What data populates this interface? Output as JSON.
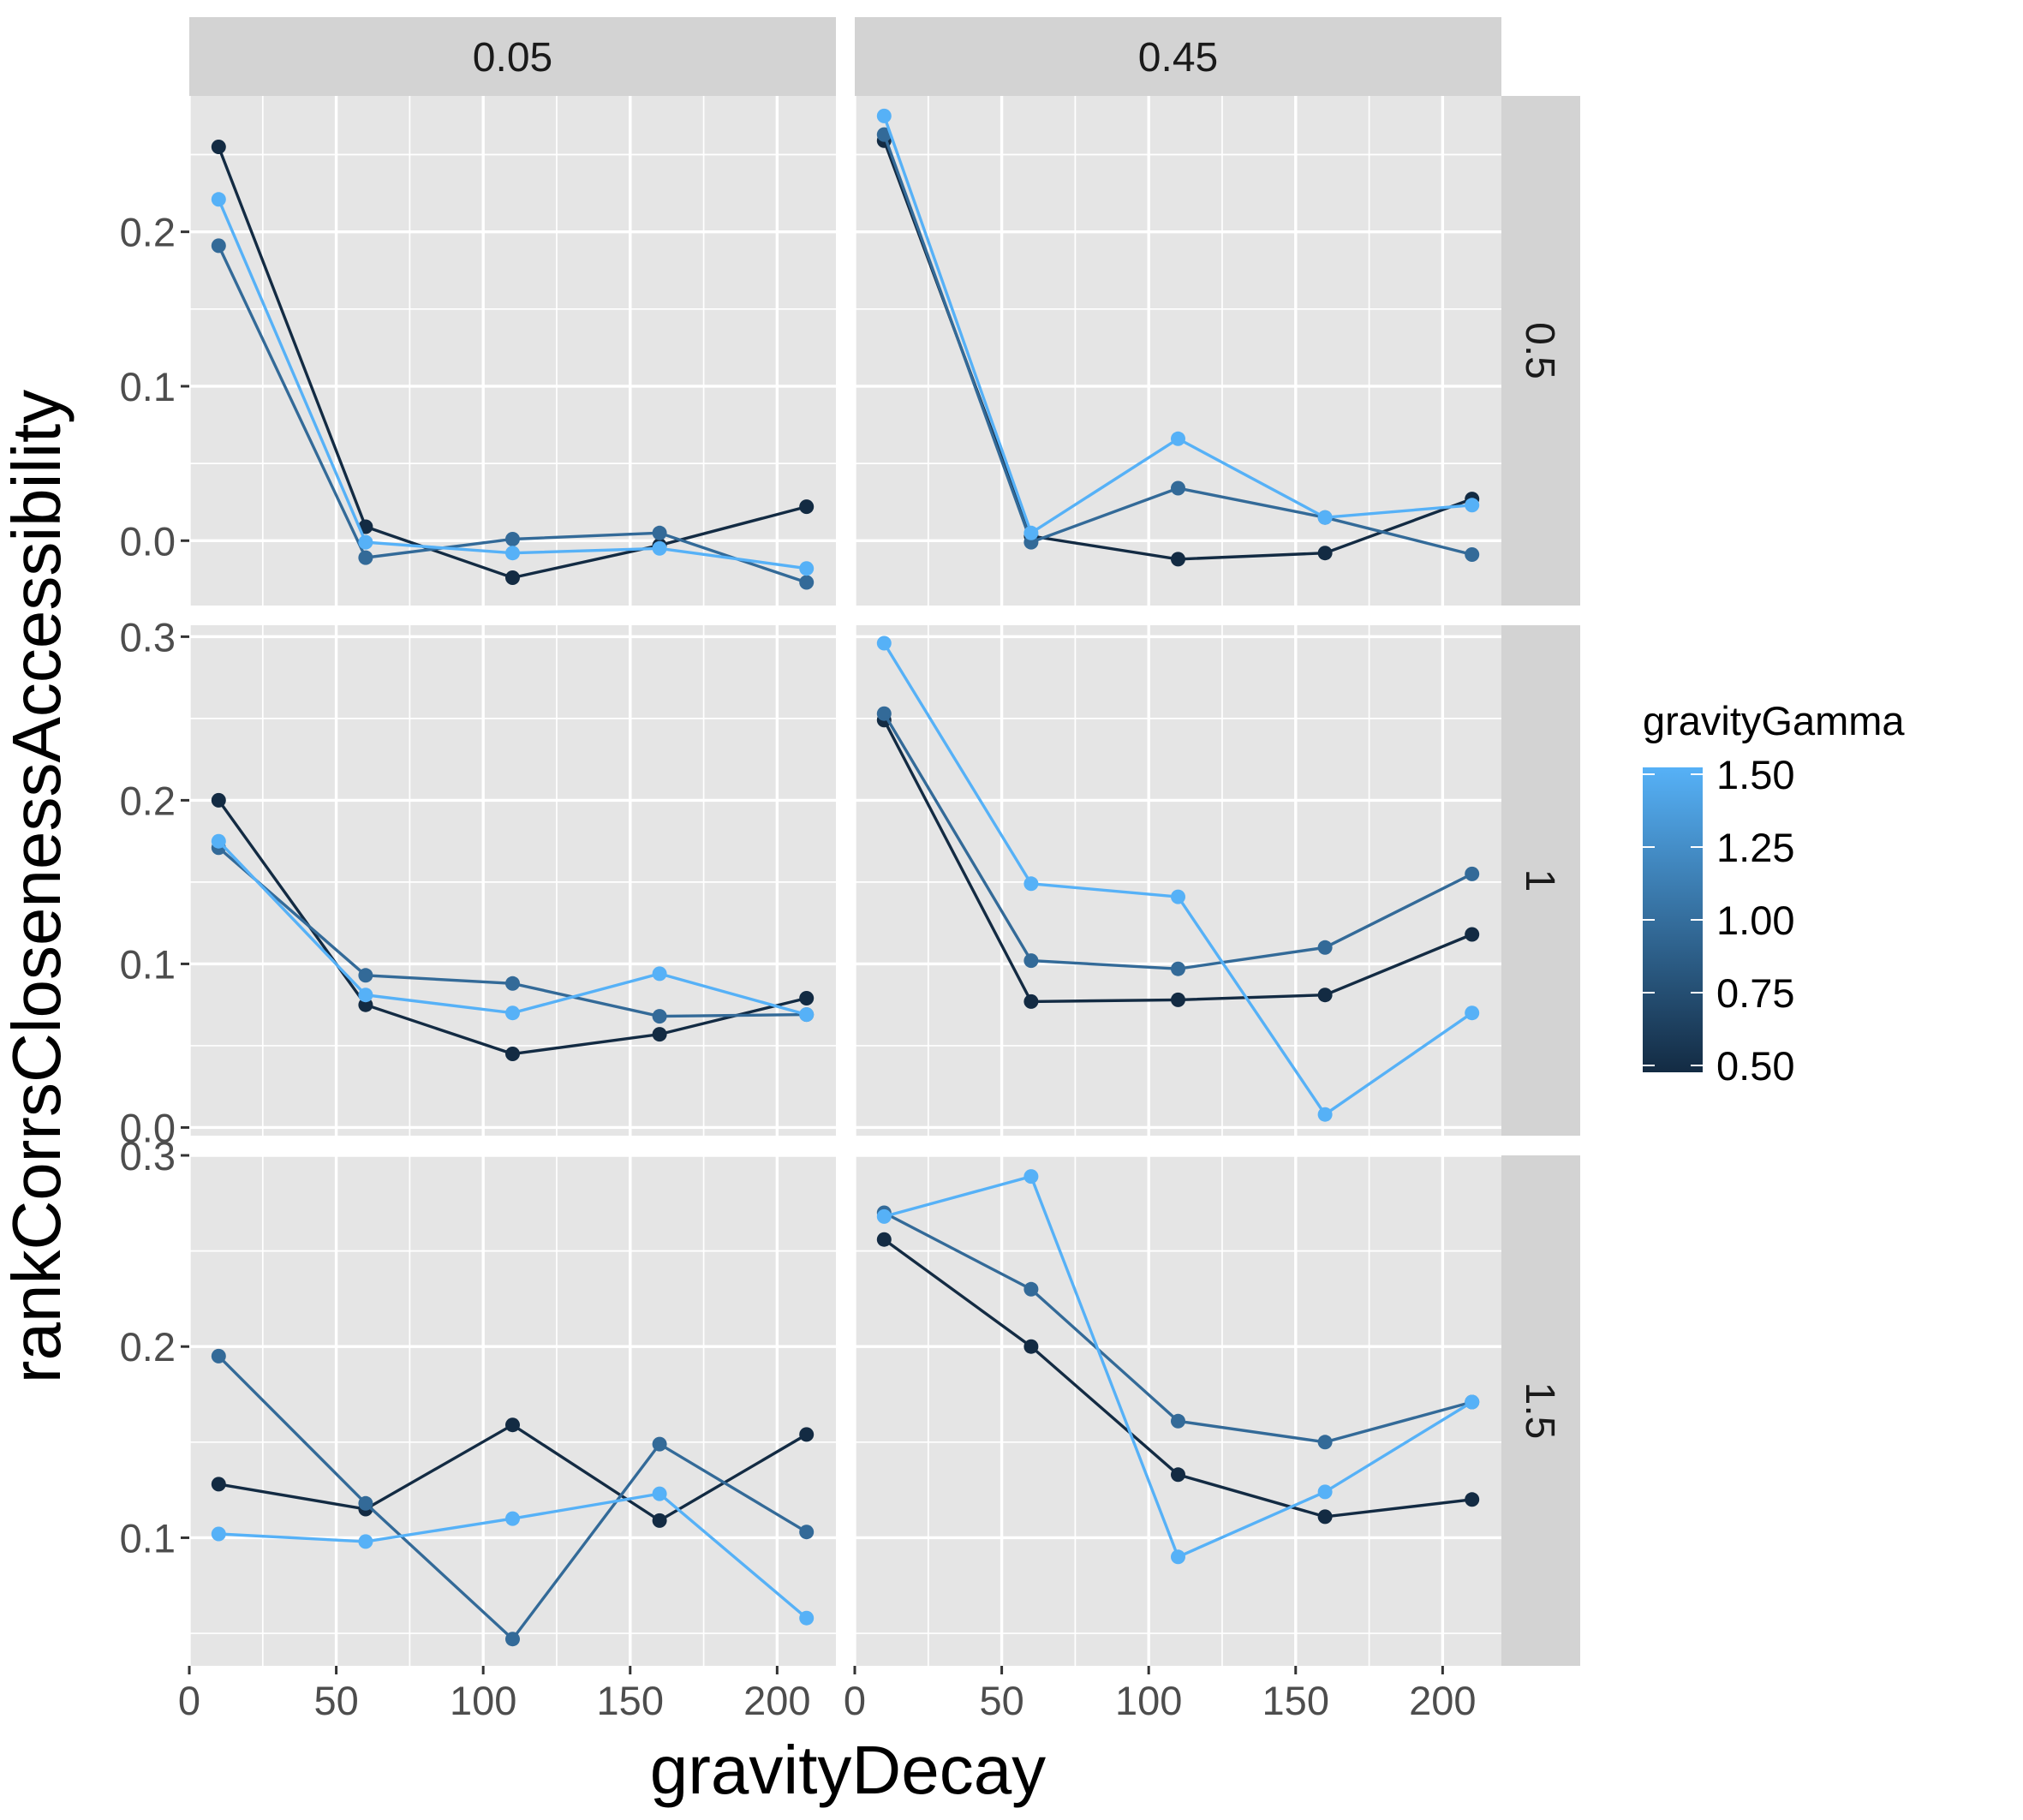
{
  "chart_data": {
    "type": "line",
    "xlabel": "gravityDecay",
    "ylabel": "rankCorrsClosenessAccessibility",
    "legend": {
      "title": "gravityGamma",
      "type": "colorbar",
      "placement": "right",
      "breaks": [
        "1.50",
        "1.25",
        "1.00",
        "0.75",
        "0.50"
      ],
      "low_color": "#132B43",
      "high_color": "#56B1F7",
      "range": [
        0.5,
        1.5
      ]
    },
    "grid": true,
    "x": [
      10,
      60,
      110,
      160,
      210
    ],
    "xlim": [
      0,
      220
    ],
    "x_ticks": [
      "0",
      "50",
      "100",
      "150",
      "200"
    ],
    "col_labels": [
      "0.05",
      "0.45"
    ],
    "row_labels": [
      "0.5",
      "1",
      "1.5"
    ],
    "rows": [
      {
        "ylim": [
          -0.042,
          0.288
        ],
        "y_ticks": [
          "0.0",
          "0.1",
          "0.2"
        ],
        "panels": [
          {
            "col": "0.05",
            "row": "0.5",
            "series": [
              {
                "gamma": 0.5,
                "color": "#132B43",
                "values": [
                  0.255,
                  0.009,
                  -0.024,
                  -0.003,
                  0.022
                ]
              },
              {
                "gamma": 1.0,
                "color": "#336A98",
                "values": [
                  0.191,
                  -0.011,
                  0.001,
                  0.005,
                  -0.027
                ]
              },
              {
                "gamma": 1.5,
                "color": "#56B1F7",
                "values": [
                  0.221,
                  -0.001,
                  -0.008,
                  -0.005,
                  -0.018
                ]
              }
            ]
          },
          {
            "col": "0.45",
            "row": "0.5",
            "series": [
              {
                "gamma": 0.5,
                "color": "#132B43",
                "values": [
                  0.259,
                  0.003,
                  -0.012,
                  -0.008,
                  0.027
                ]
              },
              {
                "gamma": 1.0,
                "color": "#336A98",
                "values": [
                  0.263,
                  -0.001,
                  0.034,
                  0.015,
                  -0.009
                ]
              },
              {
                "gamma": 1.5,
                "color": "#56B1F7",
                "values": [
                  0.275,
                  0.005,
                  0.066,
                  0.015,
                  0.023
                ]
              }
            ]
          }
        ]
      },
      {
        "ylim": [
          -0.005,
          0.307
        ],
        "y_ticks": [
          "0.0",
          "0.1",
          "0.2",
          "0.3"
        ],
        "panels": [
          {
            "col": "0.05",
            "row": "1",
            "series": [
              {
                "gamma": 0.5,
                "color": "#132B43",
                "values": [
                  0.2,
                  0.075,
                  0.045,
                  0.057,
                  0.079
                ]
              },
              {
                "gamma": 1.0,
                "color": "#336A98",
                "values": [
                  0.171,
                  0.093,
                  0.088,
                  0.068,
                  0.069
                ]
              },
              {
                "gamma": 1.5,
                "color": "#56B1F7",
                "values": [
                  0.175,
                  0.081,
                  0.07,
                  0.094,
                  0.069
                ]
              }
            ]
          },
          {
            "col": "0.45",
            "row": "1",
            "series": [
              {
                "gamma": 0.5,
                "color": "#132B43",
                "values": [
                  0.249,
                  0.077,
                  0.078,
                  0.081,
                  0.118
                ]
              },
              {
                "gamma": 1.0,
                "color": "#336A98",
                "values": [
                  0.253,
                  0.102,
                  0.097,
                  0.11,
                  0.155
                ]
              },
              {
                "gamma": 1.5,
                "color": "#56B1F7",
                "values": [
                  0.296,
                  0.149,
                  0.141,
                  0.008,
                  0.07
                ]
              }
            ]
          }
        ]
      },
      {
        "ylim": [
          0.033,
          0.3
        ],
        "y_ticks": [
          "0.1",
          "0.2",
          "0.3"
        ],
        "panels": [
          {
            "col": "0.05",
            "row": "1.5",
            "series": [
              {
                "gamma": 0.5,
                "color": "#132B43",
                "values": [
                  0.128,
                  0.115,
                  0.159,
                  0.109,
                  0.154
                ]
              },
              {
                "gamma": 1.0,
                "color": "#336A98",
                "values": [
                  0.195,
                  0.118,
                  0.047,
                  0.149,
                  0.103
                ]
              },
              {
                "gamma": 1.5,
                "color": "#56B1F7",
                "values": [
                  0.102,
                  0.098,
                  0.11,
                  0.123,
                  0.058
                ]
              }
            ]
          },
          {
            "col": "0.45",
            "row": "1.5",
            "series": [
              {
                "gamma": 0.5,
                "color": "#132B43",
                "values": [
                  0.256,
                  0.2,
                  0.133,
                  0.111,
                  0.12
                ]
              },
              {
                "gamma": 1.0,
                "color": "#336A98",
                "values": [
                  0.27,
                  0.23,
                  0.161,
                  0.15,
                  0.171
                ]
              },
              {
                "gamma": 1.5,
                "color": "#56B1F7",
                "values": [
                  0.268,
                  0.289,
                  0.09,
                  0.124,
                  0.171
                ]
              }
            ]
          }
        ]
      }
    ]
  }
}
